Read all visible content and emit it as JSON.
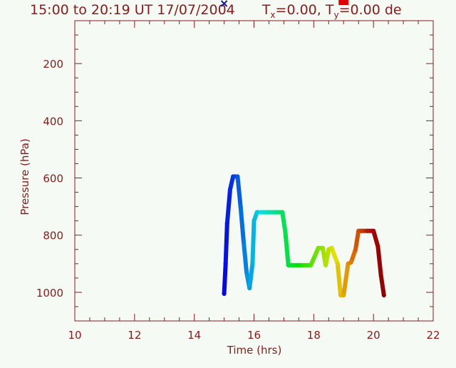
{
  "chart_data": {
    "type": "scatter",
    "title_parts": {
      "prefix": "15:00 to 20:19 UT 17/07/2004",
      "tx_label": "T",
      "tx_sub": "x",
      "tx_value": "=0.00, ",
      "ty_label": "T",
      "ty_sub": "y",
      "ty_value": "=0.00 de"
    },
    "xlabel": "Time  (hrs)",
    "ylabel": "Pressure  (hPa)",
    "xlim": [
      10,
      22
    ],
    "ylim": [
      1100,
      50
    ],
    "x_major_ticks": [
      10,
      12,
      14,
      16,
      18,
      20,
      22
    ],
    "x_tick_labels": [
      "10",
      "12",
      "14",
      "16",
      "18",
      "20",
      "22"
    ],
    "y_major_ticks": [
      200,
      400,
      600,
      800,
      1000
    ],
    "y_tick_labels": [
      "200",
      "400",
      "600",
      "800",
      "1000"
    ],
    "x_minor_step": 0.5,
    "y_minor_step": 50,
    "grid": false,
    "colors": {
      "axis": "#8b1a1a",
      "background": "#f5faf5",
      "start_marker": "#1a1aa0",
      "end_marker": "#e00000"
    },
    "color_scale": "rainbow (blue at start time, dark red at end time)",
    "start_marker": {
      "symbol": "x",
      "x": 15.0
    },
    "end_marker": {
      "symbol": "square",
      "x": 19.0
    },
    "series": [
      {
        "x": [
          15.0,
          15.05,
          15.1,
          15.2,
          15.3,
          15.45,
          15.55,
          15.65,
          15.75,
          15.85,
          15.95,
          16.0,
          16.1,
          16.4,
          16.7,
          16.95,
          17.05,
          17.15,
          17.3,
          17.6,
          17.9,
          18.05,
          18.15,
          18.3,
          18.4,
          18.5,
          18.6,
          18.8,
          18.9,
          19.0,
          19.15,
          19.25,
          19.4,
          19.5,
          19.6,
          19.8,
          20.0,
          20.15,
          20.25,
          20.35
        ],
        "y": [
          1005,
          900,
          760,
          640,
          595,
          595,
          700,
          820,
          930,
          985,
          900,
          750,
          720,
          720,
          720,
          720,
          790,
          905,
          905,
          905,
          905,
          870,
          845,
          845,
          905,
          850,
          845,
          900,
          1010,
          1010,
          900,
          895,
          850,
          785,
          785,
          785,
          785,
          840,
          940,
          1010
        ]
      }
    ]
  }
}
